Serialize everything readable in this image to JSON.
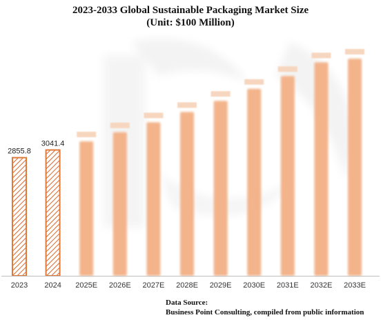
{
  "title_line1": "2023-2033 Global Sustainable Packaging Market Size",
  "title_line2": "(Unit: $100 Million)",
  "source_label": "Data Source:",
  "source_text": "Business Point Consulting, compiled from public information",
  "colors": {
    "bar_fill": "#f3b48b",
    "bar_stroke": "#e07a3a",
    "hatch": "#d9662a",
    "axis": "#bdbdbd",
    "watermark": "#f2f2f2"
  },
  "chart_data": {
    "type": "bar",
    "categories": [
      "2023",
      "2024",
      "2025E",
      "2026E",
      "2027E",
      "2028E",
      "2029E",
      "2030E",
      "2031E",
      "2032E",
      "2033E"
    ],
    "values": [
      2855.8,
      3041.4,
      3250,
      3470,
      3710,
      3960,
      4230,
      4520,
      4830,
      5160,
      5250
    ],
    "value_labels": [
      "2855.8",
      "3041.4",
      "",
      "",
      "",
      "",
      "",
      "",
      "",
      "",
      ""
    ],
    "ylim": [
      0,
      6000
    ],
    "grid": false,
    "legend": "none"
  }
}
